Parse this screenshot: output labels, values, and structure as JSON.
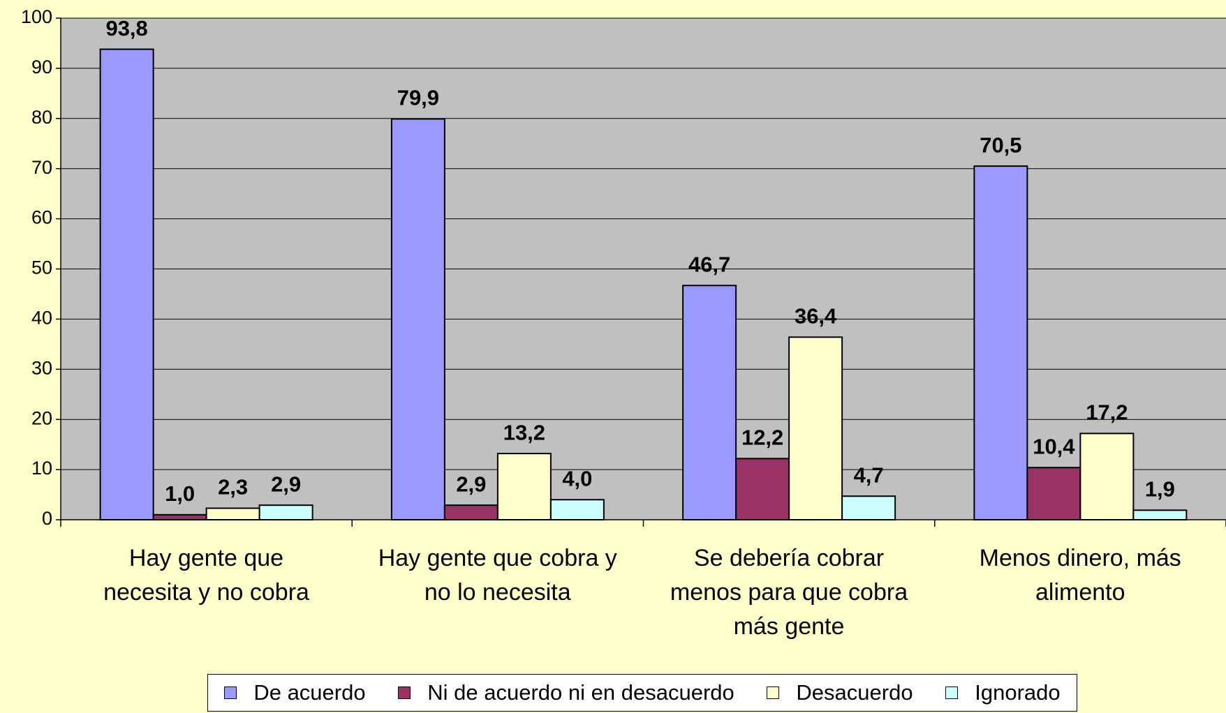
{
  "chart_data": {
    "type": "bar",
    "categories": [
      "Hay gente que\nnecesita y no cobra",
      "Hay gente que cobra y\nno lo necesita",
      "Se debería cobrar\nmenos para que cobra\nmás gente",
      "Menos dinero,  más\nalimento"
    ],
    "series": [
      {
        "name": "De acuerdo",
        "color": "#9999ff",
        "values": [
          93.8,
          79.9,
          46.7,
          70.5
        ],
        "value_labels": [
          "93,8",
          "79,9",
          "46,7",
          "70,5"
        ]
      },
      {
        "name": "Ni de acuerdo ni en desacuerdo",
        "color": "#993366",
        "values": [
          1.0,
          2.9,
          12.2,
          10.4
        ],
        "value_labels": [
          "1,0",
          "2,9",
          "12,2",
          "10,4"
        ]
      },
      {
        "name": "Desacuerdo",
        "color": "#ffffcc",
        "values": [
          2.3,
          13.2,
          36.4,
          17.2
        ],
        "value_labels": [
          "2,3",
          "13,2",
          "36,4",
          "17,2"
        ]
      },
      {
        "name": "Ignorado",
        "color": "#ccffff",
        "values": [
          2.9,
          4.0,
          4.7,
          1.9
        ],
        "value_labels": [
          "2,9",
          "4,0",
          "4,7",
          "1,9"
        ]
      }
    ],
    "ylim": [
      0,
      100
    ],
    "yticks": [
      0,
      10,
      20,
      30,
      40,
      50,
      60,
      70,
      80,
      90,
      100
    ],
    "grid": true,
    "legend": "bottom"
  }
}
